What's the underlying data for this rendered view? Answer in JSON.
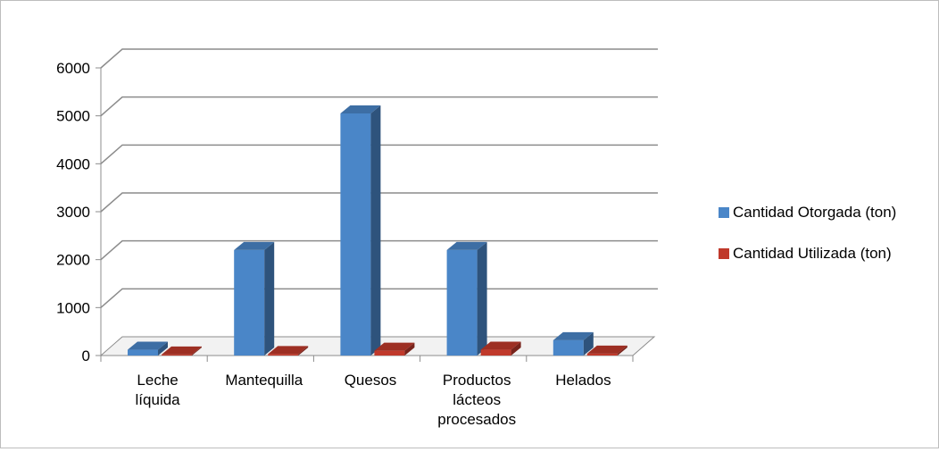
{
  "chart_data": {
    "type": "bar",
    "style": "3d-clustered-column",
    "categories": [
      [
        "Leche",
        "líquida"
      ],
      [
        "Mantequilla"
      ],
      [
        "Quesos"
      ],
      [
        "Productos",
        "lácteos",
        "procesados"
      ],
      [
        "Helados"
      ]
    ],
    "series": [
      {
        "name": "Cantidad Otorgada (ton)",
        "color": "#4a86c8",
        "values": [
          120,
          2200,
          5050,
          2200,
          320
        ]
      },
      {
        "name": "Cantidad Utilizada (ton)",
        "color": "#c0392b",
        "values": [
          20,
          30,
          100,
          120,
          40
        ]
      }
    ],
    "yticks": [
      0,
      1000,
      2000,
      3000,
      4000,
      5000,
      6000
    ],
    "ylim": [
      0,
      6000
    ],
    "grid": true,
    "legend_position": "right"
  }
}
